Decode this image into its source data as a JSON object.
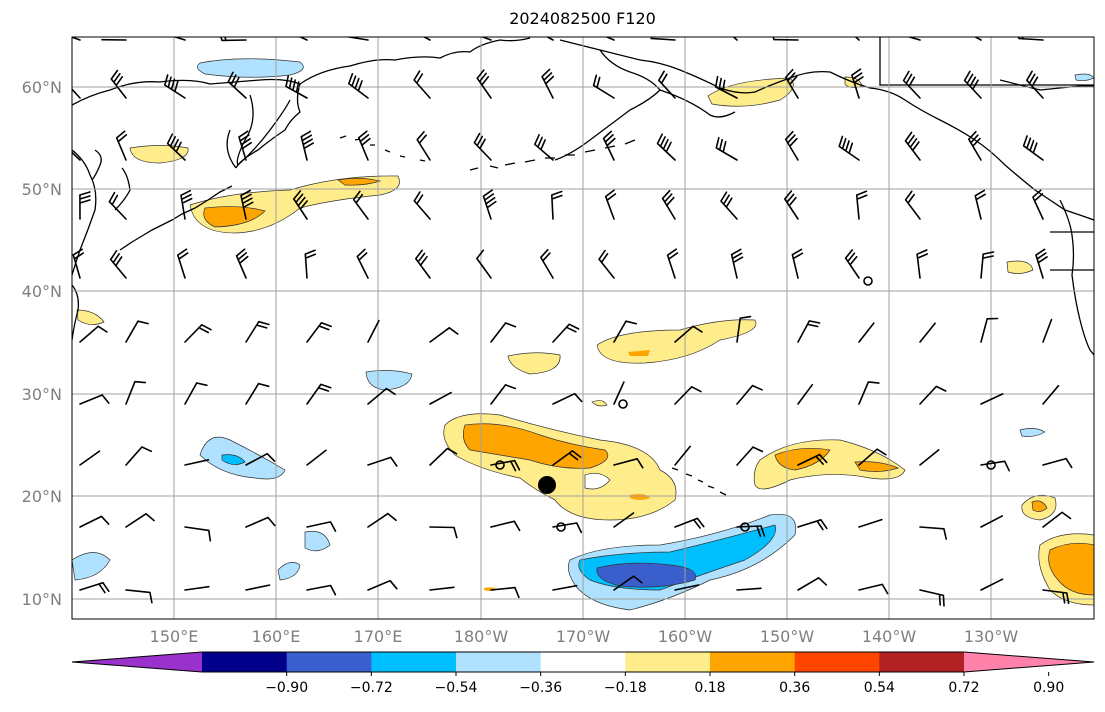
{
  "title": "2024082500 F120",
  "map": {
    "lat_labels": [
      "10°N",
      "20°N",
      "30°N",
      "40°N",
      "50°N",
      "60°N"
    ],
    "lon_labels": [
      "150°E",
      "160°E",
      "170°E",
      "180°W",
      "170°W",
      "160°W",
      "150°W",
      "140°W",
      "130°W"
    ],
    "grid_color": "#a0a0a0",
    "coastline_color": "#000000"
  },
  "colorbar": {
    "colors": [
      "#9932cc",
      "#00008b",
      "#3a5fcd",
      "#00bfff",
      "#b0e2ff",
      "#ffffff",
      "#ffec8b",
      "#ffa500",
      "#ff4500",
      "#b22222",
      "#ff82ab"
    ],
    "tick_labels": [
      "−0.90",
      "−0.72",
      "−0.54",
      "−0.36",
      "−0.18",
      "0.18",
      "0.36",
      "0.54",
      "0.72",
      "0.90"
    ]
  },
  "marker": {
    "name": "storm-center-dot",
    "lat": 21,
    "lon": -174
  }
}
